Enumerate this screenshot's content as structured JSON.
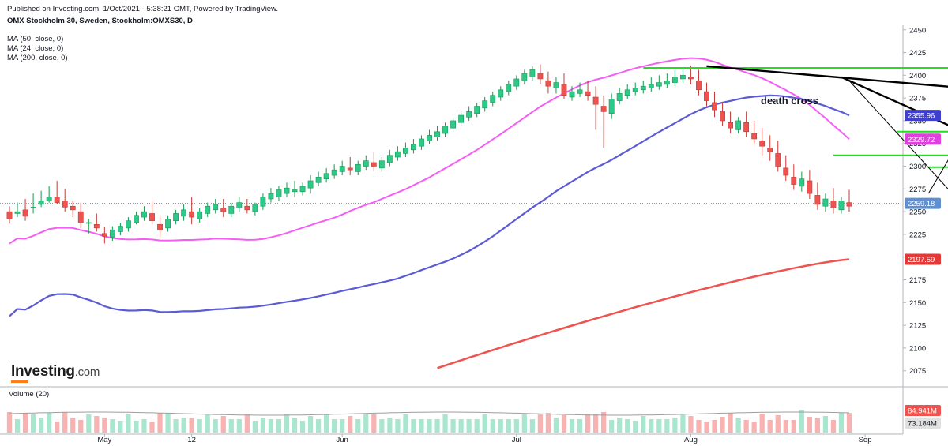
{
  "header": {
    "published": "Published on Investing.com, 1/Oct/2021 - 5:38:21 GMT, Powered by TradingView.",
    "symbol": "OMX Stockholm 30, Sweden, Stockholm:OMXS30, D"
  },
  "indicators": [
    {
      "label": "MA (50, close, 0)",
      "color": "#5b5bd6"
    },
    {
      "label": "MA (24, close, 0)",
      "color": "#f55df5"
    },
    {
      "label": "MA (200, close, 0)",
      "color": "#ef5350"
    }
  ],
  "logo": {
    "main": "Investing",
    "suffix": ".com"
  },
  "volume_panel": {
    "label": "Volume (20)"
  },
  "colors": {
    "up": "#26a69a",
    "up_fill": "#2dc98a",
    "down": "#ef5350",
    "volume_up": "#a8e6cf",
    "volume_down": "#f7b2b2",
    "support_green": "#22dd22",
    "support_red": "#e00000",
    "trend_black": "#000000"
  },
  "chart_data": {
    "type": "candlestick",
    "ylim": [
      2060,
      2455
    ],
    "y_ticks": [
      2075,
      2100,
      2125,
      2150,
      2175,
      2200,
      2225,
      2250,
      2275,
      2300,
      2325,
      2350,
      2375,
      2400,
      2425,
      2450
    ],
    "x_ticks": [
      {
        "label": "May",
        "index": 12
      },
      {
        "label": "12",
        "index": 23
      },
      {
        "label": "Jun",
        "index": 42
      },
      {
        "label": "Jul",
        "index": 64
      },
      {
        "label": "Aug",
        "index": 86
      },
      {
        "label": "Sep",
        "index": 108
      }
    ],
    "candles": [
      [
        2250,
        2256,
        2242,
        2237
      ],
      [
        2248,
        2260,
        2250,
        2244
      ],
      [
        2252,
        2264,
        2245,
        2240
      ],
      [
        2255,
        2270,
        2255,
        2248
      ],
      [
        2258,
        2273,
        2262,
        2255
      ],
      [
        2262,
        2278,
        2266,
        2260
      ],
      [
        2266,
        2284,
        2260,
        2258
      ],
      [
        2262,
        2275,
        2255,
        2250
      ],
      [
        2256,
        2262,
        2252,
        2244
      ],
      [
        2250,
        2260,
        2238,
        2232
      ],
      [
        2238,
        2242,
        2238,
        2226
      ],
      [
        2236,
        2248,
        2232,
        2228
      ],
      [
        2226,
        2233,
        2223,
        2215
      ],
      [
        2222,
        2234,
        2230,
        2218
      ],
      [
        2228,
        2238,
        2234,
        2224
      ],
      [
        2232,
        2244,
        2240,
        2228
      ],
      [
        2238,
        2250,
        2246,
        2236
      ],
      [
        2244,
        2256,
        2250,
        2240
      ],
      [
        2248,
        2262,
        2240,
        2236
      ],
      [
        2236,
        2246,
        2230,
        2222
      ],
      [
        2232,
        2246,
        2242,
        2228
      ],
      [
        2240,
        2252,
        2248,
        2236
      ],
      [
        2245,
        2258,
        2252,
        2240
      ],
      [
        2250,
        2266,
        2244,
        2236
      ],
      [
        2242,
        2254,
        2250,
        2238
      ],
      [
        2248,
        2260,
        2256,
        2244
      ],
      [
        2252,
        2264,
        2258,
        2248
      ],
      [
        2254,
        2264,
        2250,
        2244
      ],
      [
        2248,
        2260,
        2256,
        2244
      ],
      [
        2254,
        2266,
        2260,
        2250
      ],
      [
        2256,
        2264,
        2252,
        2248
      ],
      [
        2250,
        2260,
        2258,
        2246
      ],
      [
        2256,
        2270,
        2266,
        2252
      ],
      [
        2264,
        2276,
        2270,
        2260
      ],
      [
        2266,
        2278,
        2274,
        2262
      ],
      [
        2270,
        2282,
        2276,
        2266
      ],
      [
        2272,
        2284,
        2274,
        2266
      ],
      [
        2272,
        2282,
        2278,
        2268
      ],
      [
        2276,
        2290,
        2284,
        2270
      ],
      [
        2282,
        2294,
        2288,
        2278
      ],
      [
        2286,
        2298,
        2292,
        2282
      ],
      [
        2290,
        2302,
        2296,
        2286
      ],
      [
        2294,
        2306,
        2300,
        2290
      ],
      [
        2298,
        2310,
        2296,
        2290
      ],
      [
        2294,
        2306,
        2302,
        2290
      ],
      [
        2300,
        2312,
        2306,
        2296
      ],
      [
        2304,
        2316,
        2300,
        2294
      ],
      [
        2298,
        2310,
        2306,
        2294
      ],
      [
        2304,
        2318,
        2312,
        2300
      ],
      [
        2310,
        2322,
        2316,
        2306
      ],
      [
        2314,
        2326,
        2320,
        2310
      ],
      [
        2318,
        2330,
        2324,
        2314
      ],
      [
        2322,
        2334,
        2330,
        2318
      ],
      [
        2328,
        2340,
        2334,
        2324
      ],
      [
        2332,
        2344,
        2338,
        2328
      ],
      [
        2336,
        2348,
        2344,
        2332
      ],
      [
        2342,
        2354,
        2350,
        2338
      ],
      [
        2348,
        2360,
        2356,
        2344
      ],
      [
        2354,
        2366,
        2360,
        2350
      ],
      [
        2358,
        2370,
        2366,
        2354
      ],
      [
        2364,
        2376,
        2372,
        2360
      ],
      [
        2370,
        2382,
        2378,
        2366
      ],
      [
        2376,
        2388,
        2384,
        2372
      ],
      [
        2382,
        2394,
        2390,
        2378
      ],
      [
        2388,
        2400,
        2396,
        2384
      ],
      [
        2394,
        2406,
        2402,
        2390
      ],
      [
        2398,
        2410,
        2406,
        2394
      ],
      [
        2402,
        2412,
        2396,
        2390
      ],
      [
        2394,
        2404,
        2388,
        2380
      ],
      [
        2386,
        2398,
        2392,
        2380
      ],
      [
        2390,
        2402,
        2378,
        2374
      ],
      [
        2376,
        2388,
        2382,
        2372
      ],
      [
        2380,
        2392,
        2384,
        2376
      ],
      [
        2382,
        2394,
        2378,
        2372
      ],
      [
        2376,
        2388,
        2368,
        2340
      ],
      [
        2366,
        2378,
        2360,
        2320
      ],
      [
        2358,
        2380,
        2374,
        2352
      ],
      [
        2372,
        2386,
        2380,
        2368
      ],
      [
        2378,
        2390,
        2384,
        2374
      ],
      [
        2382,
        2392,
        2386,
        2378
      ],
      [
        2384,
        2394,
        2388,
        2380
      ],
      [
        2386,
        2398,
        2390,
        2382
      ],
      [
        2388,
        2400,
        2392,
        2384
      ],
      [
        2390,
        2402,
        2394,
        2386
      ],
      [
        2392,
        2406,
        2398,
        2388
      ],
      [
        2396,
        2408,
        2400,
        2392
      ],
      [
        2398,
        2410,
        2396,
        2390
      ],
      [
        2394,
        2406,
        2384,
        2378
      ],
      [
        2382,
        2392,
        2372,
        2366
      ],
      [
        2370,
        2382,
        2362,
        2354
      ],
      [
        2360,
        2370,
        2350,
        2344
      ],
      [
        2348,
        2360,
        2342,
        2336
      ],
      [
        2340,
        2354,
        2350,
        2336
      ],
      [
        2348,
        2360,
        2338,
        2332
      ],
      [
        2336,
        2350,
        2330,
        2324
      ],
      [
        2328,
        2342,
        2322,
        2312
      ],
      [
        2320,
        2334,
        2316,
        2306
      ],
      [
        2314,
        2328,
        2300,
        2294
      ],
      [
        2298,
        2312,
        2290,
        2284
      ],
      [
        2288,
        2302,
        2280,
        2274
      ],
      [
        2278,
        2294,
        2286,
        2272
      ],
      [
        2284,
        2296,
        2270,
        2264
      ],
      [
        2268,
        2282,
        2258,
        2252
      ],
      [
        2256,
        2270,
        2264,
        2250
      ],
      [
        2262,
        2276,
        2254,
        2248
      ],
      [
        2252,
        2266,
        2262,
        2248
      ],
      [
        2260,
        2274,
        2256,
        2250
      ]
    ],
    "moving_averages": {
      "ma50": {
        "last": 2355.96,
        "start": 2135
      },
      "ma24": {
        "last": 2329.72,
        "start": 2215
      },
      "ma200": {
        "last": 2197.59,
        "start": 2078
      }
    },
    "price_badges": [
      {
        "value": "2355.96",
        "color": "#3f3fcf"
      },
      {
        "value": "2329.72",
        "color": "#e040e0"
      },
      {
        "value": "2259.18",
        "color": "#5f8fd0"
      },
      {
        "value": "2197.59",
        "color": "#e53935"
      }
    ],
    "volume_badges": [
      {
        "value": "84.941M",
        "color": "#ef5350"
      },
      {
        "value": "73.184M",
        "color": "#e0e0e0"
      }
    ],
    "annotations": [
      {
        "text": "death cross"
      }
    ],
    "last_price": 2259.18
  }
}
